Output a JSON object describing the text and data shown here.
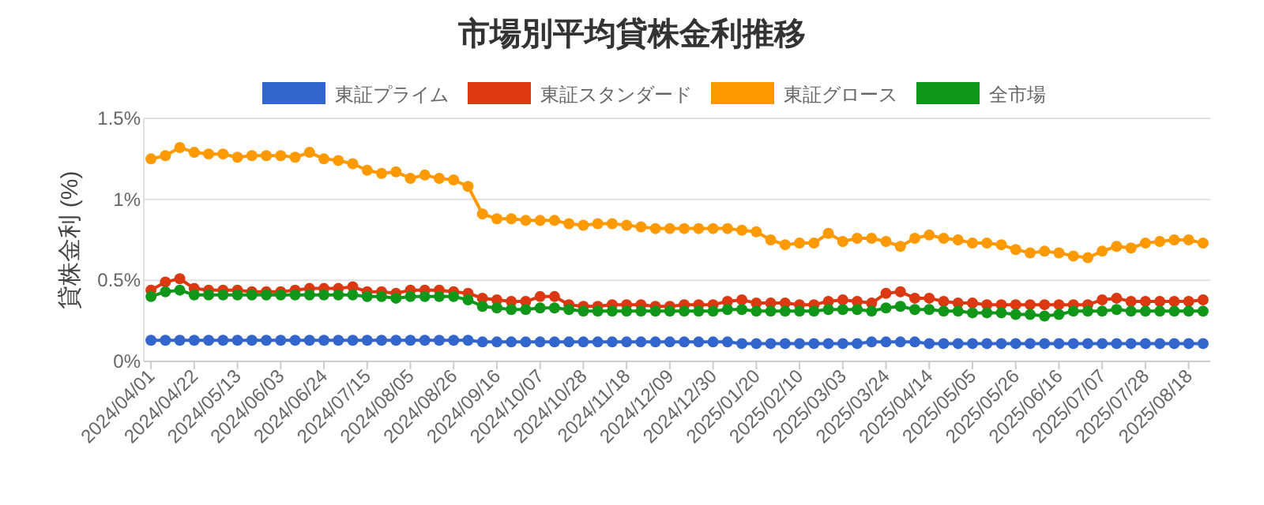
{
  "chart_data": {
    "type": "line",
    "title": "市場別平均貸株金利推移",
    "ylabel": "貸株金利 (%)",
    "categories": [
      "2024/04/01",
      null,
      null,
      "2024/04/22",
      null,
      null,
      "2024/05/13",
      null,
      null,
      "2024/06/03",
      null,
      null,
      "2024/06/24",
      null,
      null,
      "2024/07/15",
      null,
      null,
      "2024/08/05",
      null,
      null,
      "2024/08/26",
      null,
      null,
      "2024/09/16",
      null,
      null,
      "2024/10/07",
      null,
      null,
      "2024/10/28",
      null,
      null,
      "2024/11/18",
      null,
      null,
      "2024/12/09",
      null,
      null,
      "2024/12/30",
      null,
      null,
      "2025/01/20",
      null,
      null,
      "2025/02/10",
      null,
      null,
      "2025/03/03",
      null,
      null,
      "2025/03/24",
      null,
      null,
      "2025/04/14",
      null,
      null,
      "2025/05/05",
      null,
      null,
      "2025/05/26",
      null,
      null,
      "2025/06/16",
      null,
      null,
      "2025/07/07",
      null,
      null,
      "2025/07/28",
      null,
      null,
      "2025/08/18",
      null
    ],
    "ylim": [
      0,
      1.5
    ],
    "yticks": [
      {
        "value": 0,
        "label": "0%"
      },
      {
        "value": 0.5,
        "label": "0.5%"
      },
      {
        "value": 1,
        "label": "1%"
      },
      {
        "value": 1.5,
        "label": "1.5%"
      }
    ],
    "grid": "y",
    "legend": "top",
    "marker": "circle",
    "line_style": "solid",
    "series": [
      {
        "name": "東証プライム",
        "color": "#3366cc",
        "values": [
          0.13,
          0.13,
          0.13,
          0.13,
          0.13,
          0.13,
          0.13,
          0.13,
          0.13,
          0.13,
          0.13,
          0.13,
          0.13,
          0.13,
          0.13,
          0.13,
          0.13,
          0.13,
          0.13,
          0.13,
          0.13,
          0.13,
          0.13,
          0.12,
          0.12,
          0.12,
          0.12,
          0.12,
          0.12,
          0.12,
          0.12,
          0.12,
          0.12,
          0.12,
          0.12,
          0.12,
          0.12,
          0.12,
          0.12,
          0.12,
          0.12,
          0.11,
          0.11,
          0.11,
          0.11,
          0.11,
          0.11,
          0.11,
          0.11,
          0.11,
          0.12,
          0.12,
          0.12,
          0.12,
          0.11,
          0.11,
          0.11,
          0.11,
          0.11,
          0.11,
          0.11,
          0.11,
          0.11,
          0.11,
          0.11,
          0.11,
          0.11,
          0.11,
          0.11,
          0.11,
          0.11,
          0.11,
          0.11,
          0.11
        ]
      },
      {
        "name": "東証スタンダード",
        "color": "#dc3912",
        "values": [
          0.44,
          0.49,
          0.51,
          0.45,
          0.44,
          0.44,
          0.44,
          0.43,
          0.43,
          0.43,
          0.44,
          0.45,
          0.45,
          0.45,
          0.46,
          0.43,
          0.43,
          0.42,
          0.44,
          0.44,
          0.44,
          0.43,
          0.42,
          0.39,
          0.38,
          0.37,
          0.37,
          0.4,
          0.4,
          0.35,
          0.34,
          0.34,
          0.35,
          0.35,
          0.35,
          0.34,
          0.34,
          0.35,
          0.35,
          0.35,
          0.37,
          0.38,
          0.36,
          0.36,
          0.36,
          0.35,
          0.35,
          0.37,
          0.38,
          0.37,
          0.36,
          0.42,
          0.43,
          0.39,
          0.39,
          0.37,
          0.36,
          0.36,
          0.35,
          0.35,
          0.35,
          0.35,
          0.35,
          0.35,
          0.35,
          0.35,
          0.38,
          0.39,
          0.37,
          0.37,
          0.37,
          0.37,
          0.37,
          0.38
        ]
      },
      {
        "name": "東証グロース",
        "color": "#ff9900",
        "values": [
          1.25,
          1.27,
          1.32,
          1.29,
          1.28,
          1.28,
          1.26,
          1.27,
          1.27,
          1.27,
          1.26,
          1.29,
          1.25,
          1.24,
          1.22,
          1.18,
          1.16,
          1.17,
          1.13,
          1.15,
          1.13,
          1.12,
          1.08,
          0.91,
          0.88,
          0.88,
          0.87,
          0.87,
          0.87,
          0.85,
          0.84,
          0.85,
          0.85,
          0.84,
          0.83,
          0.82,
          0.82,
          0.82,
          0.82,
          0.82,
          0.82,
          0.81,
          0.8,
          0.75,
          0.72,
          0.73,
          0.73,
          0.79,
          0.74,
          0.76,
          0.76,
          0.74,
          0.71,
          0.76,
          0.78,
          0.76,
          0.75,
          0.73,
          0.73,
          0.72,
          0.69,
          0.67,
          0.68,
          0.67,
          0.65,
          0.64,
          0.68,
          0.71,
          0.7,
          0.73,
          0.74,
          0.75,
          0.75,
          0.73
        ]
      },
      {
        "name": "全市場",
        "color": "#109618",
        "values": [
          0.4,
          0.43,
          0.44,
          0.41,
          0.41,
          0.41,
          0.41,
          0.41,
          0.41,
          0.41,
          0.41,
          0.41,
          0.41,
          0.41,
          0.41,
          0.4,
          0.4,
          0.39,
          0.4,
          0.4,
          0.4,
          0.4,
          0.38,
          0.34,
          0.33,
          0.32,
          0.32,
          0.33,
          0.33,
          0.32,
          0.31,
          0.31,
          0.31,
          0.31,
          0.31,
          0.31,
          0.31,
          0.31,
          0.31,
          0.31,
          0.32,
          0.32,
          0.31,
          0.31,
          0.31,
          0.31,
          0.31,
          0.32,
          0.32,
          0.32,
          0.31,
          0.33,
          0.34,
          0.32,
          0.32,
          0.31,
          0.31,
          0.3,
          0.3,
          0.3,
          0.29,
          0.29,
          0.28,
          0.29,
          0.31,
          0.31,
          0.31,
          0.32,
          0.31,
          0.31,
          0.31,
          0.31,
          0.31,
          0.31
        ]
      }
    ]
  }
}
